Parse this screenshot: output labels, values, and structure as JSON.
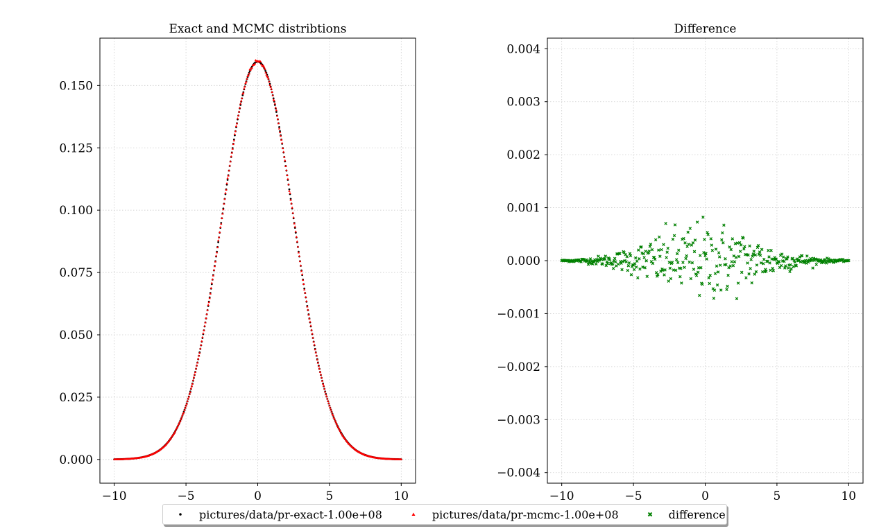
{
  "chart_data": [
    {
      "type": "scatter",
      "title": "Exact and MCMC distribtions",
      "xlabel": "",
      "ylabel": "",
      "xlim": [
        -11,
        11
      ],
      "ylim": [
        -0.0095,
        0.169
      ],
      "xticks": [
        -10,
        -5,
        0,
        5,
        10
      ],
      "xtick_labels": [
        "−10",
        "−5",
        "0",
        "5",
        "10"
      ],
      "yticks": [
        0.0,
        0.025,
        0.05,
        0.075,
        0.1,
        0.125,
        0.15
      ],
      "ytick_labels": [
        "0.000",
        "0.025",
        "0.050",
        "0.075",
        "0.100",
        "0.125",
        "0.150"
      ],
      "grid": true,
      "series": [
        {
          "name": "pictures/data/pr-exact-1.00e+08",
          "color": "#000000",
          "marker": "circle",
          "x_range": [
            -10,
            10
          ],
          "x_step": 0.05,
          "formula": "exp(-x^2/(2*2.5^2))/(2.5*sqrt(2*pi))",
          "peak_y": 0.1596
        },
        {
          "name": "pictures/data/pr-mcmc-1.00e+08",
          "color": "#ff0000",
          "marker": "triangle",
          "x_range": [
            -10,
            10
          ],
          "x_step": 0.05,
          "formula": "exact + difference",
          "peak_y": 0.1596
        }
      ]
    },
    {
      "type": "scatter",
      "title": "Difference",
      "xlabel": "",
      "ylabel": "",
      "xlim": [
        -11,
        11
      ],
      "ylim": [
        -0.0042,
        0.0042
      ],
      "xticks": [
        -10,
        -5,
        0,
        5,
        10
      ],
      "xtick_labels": [
        "−10",
        "−5",
        "0",
        "5",
        "10"
      ],
      "yticks": [
        -0.004,
        -0.003,
        -0.002,
        -0.001,
        0.0,
        0.001,
        0.002,
        0.003,
        0.004
      ],
      "ytick_labels": [
        "−0.004",
        "−0.003",
        "−0.002",
        "−0.001",
        "0.000",
        "0.001",
        "0.002",
        "0.003",
        "0.004"
      ],
      "grid": true,
      "series": [
        {
          "name": "difference",
          "color": "#008000",
          "marker": "x",
          "x_range": [
            -10,
            10
          ],
          "x_step": 0.05,
          "noise_amplitude_at_center": 0.00038,
          "max_abs_y": 0.00082,
          "min_y": -0.00078
        }
      ]
    }
  ],
  "legend": {
    "placement": "bottom-center",
    "items": [
      {
        "label": "pictures/data/pr-exact-1.00e+08",
        "color": "#000000",
        "marker": "circle"
      },
      {
        "label": "pictures/data/pr-mcmc-1.00e+08",
        "color": "#ff0000",
        "marker": "triangle"
      },
      {
        "label": "difference",
        "color": "#008000",
        "marker": "x"
      }
    ]
  }
}
